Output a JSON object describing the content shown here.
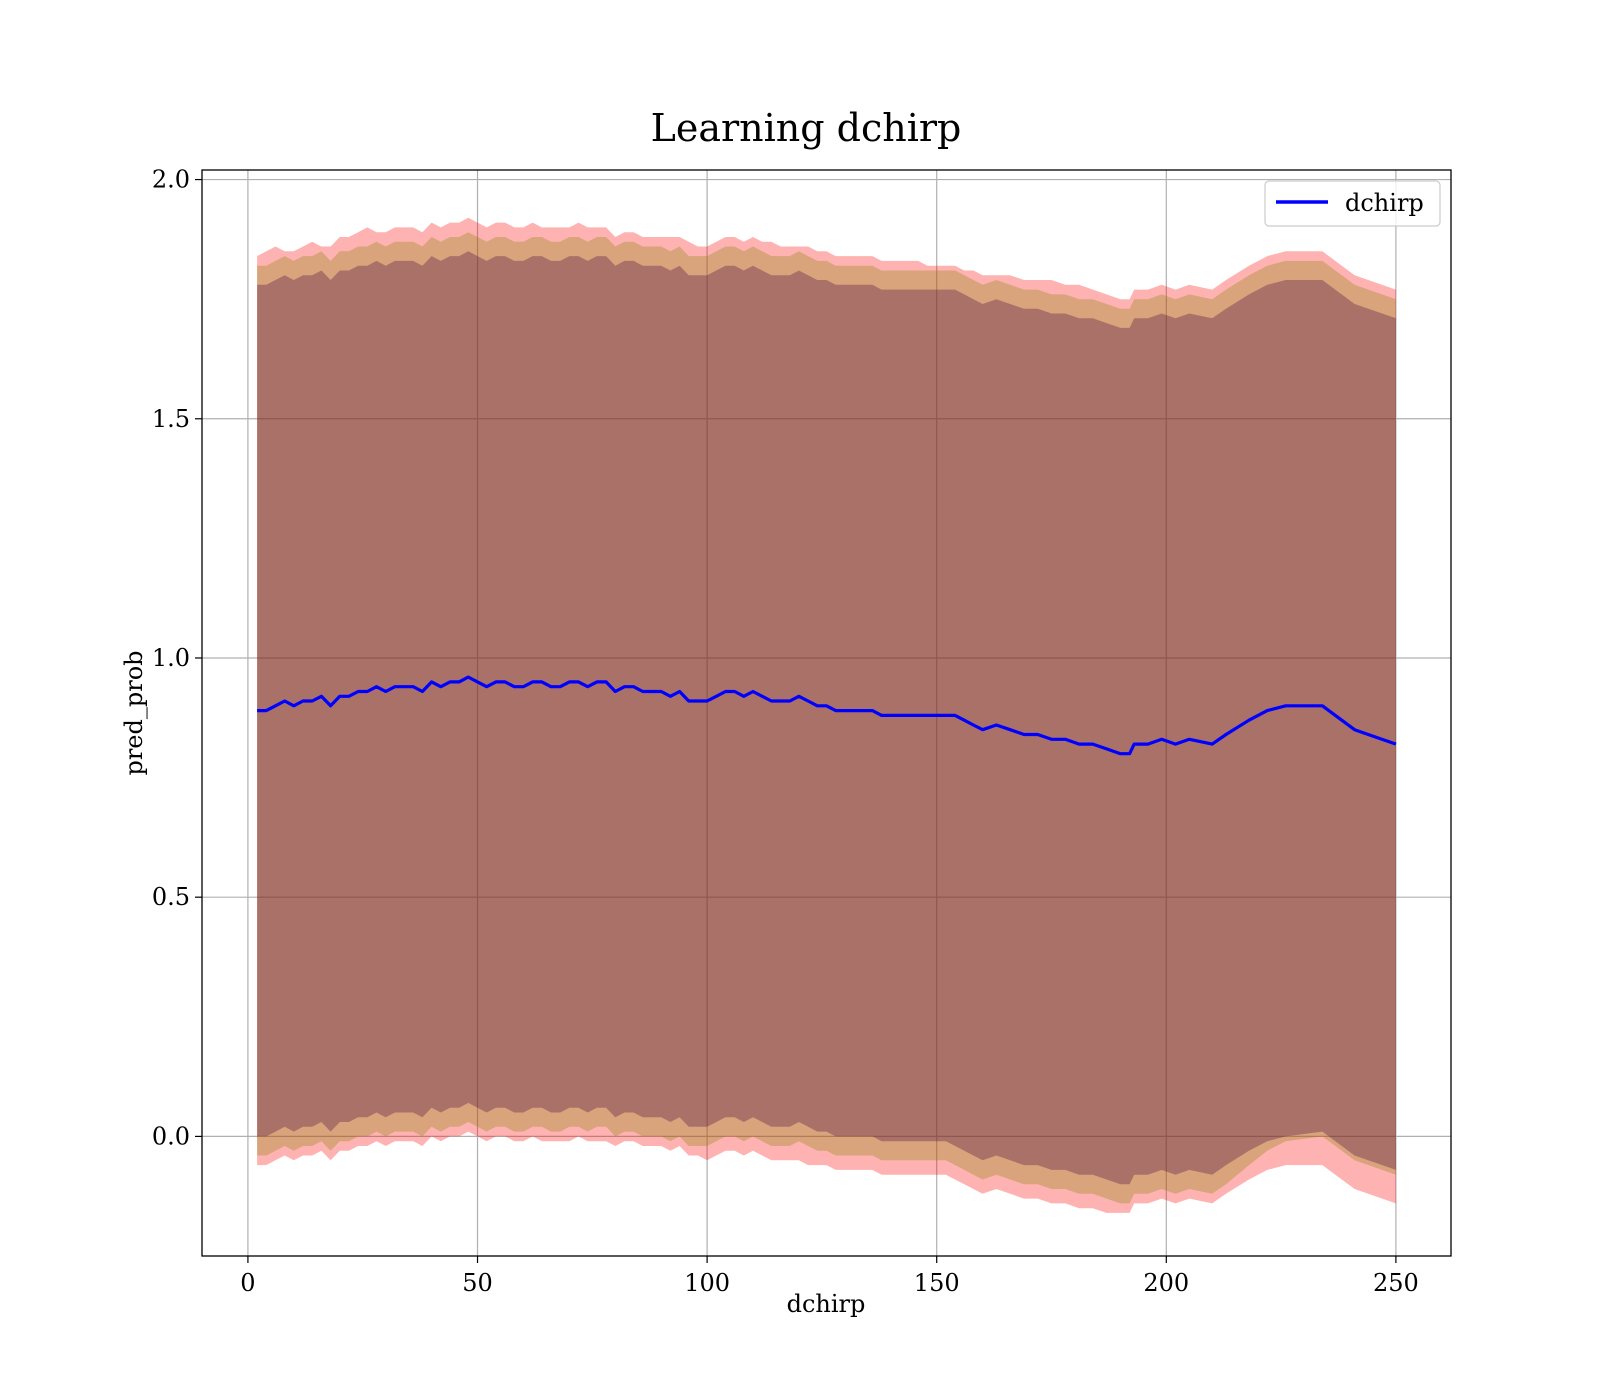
{
  "chart_data": {
    "type": "line",
    "title": "Learning dchirp",
    "xlabel": "dchirp",
    "ylabel": "pred_prob",
    "xlim": [
      -10,
      262
    ],
    "ylim": [
      -0.25,
      2.02
    ],
    "xticks": [
      0,
      50,
      100,
      150,
      200,
      250
    ],
    "yticks": [
      0.0,
      0.5,
      1.0,
      1.5,
      2.0
    ],
    "xtick_labels": [
      "0",
      "50",
      "100",
      "150",
      "200",
      "250"
    ],
    "ytick_labels": [
      "0.0",
      "0.5",
      "1.0",
      "1.5",
      "2.0"
    ],
    "grid": true,
    "legend": {
      "position": "top-right",
      "entries": [
        "dchirp"
      ]
    },
    "colors": {
      "line": "#0000ff",
      "band_outer": "#ff0000",
      "band_middle": "#808000",
      "band_inner": "#400040"
    },
    "series": [
      {
        "name": "dchirp",
        "x": [
          2,
          4,
          6,
          8,
          10,
          12,
          14,
          16,
          18,
          20,
          22,
          24,
          26,
          28,
          30,
          32,
          34,
          36,
          38,
          40,
          42,
          44,
          46,
          48,
          50,
          52,
          54,
          56,
          58,
          60,
          62,
          64,
          66,
          68,
          70,
          72,
          74,
          76,
          78,
          80,
          82,
          84,
          86,
          88,
          90,
          92,
          94,
          96,
          98,
          100,
          102,
          104,
          106,
          108,
          110,
          112,
          114,
          116,
          118,
          120,
          122,
          124,
          126,
          128,
          130,
          132,
          134,
          136,
          138,
          140,
          142,
          144,
          146,
          148,
          150,
          152,
          154,
          156,
          158,
          160,
          163,
          166,
          169,
          172,
          175,
          178,
          181,
          184,
          187,
          190,
          192,
          193,
          196,
          199,
          202,
          205,
          210,
          213,
          218,
          222,
          226,
          234,
          241,
          250
        ],
        "y": [
          0.89,
          0.89,
          0.9,
          0.91,
          0.9,
          0.91,
          0.91,
          0.92,
          0.9,
          0.92,
          0.92,
          0.93,
          0.93,
          0.94,
          0.93,
          0.94,
          0.94,
          0.94,
          0.93,
          0.95,
          0.94,
          0.95,
          0.95,
          0.96,
          0.95,
          0.94,
          0.95,
          0.95,
          0.94,
          0.94,
          0.95,
          0.95,
          0.94,
          0.94,
          0.95,
          0.95,
          0.94,
          0.95,
          0.95,
          0.93,
          0.94,
          0.94,
          0.93,
          0.93,
          0.93,
          0.92,
          0.93,
          0.91,
          0.91,
          0.91,
          0.92,
          0.93,
          0.93,
          0.92,
          0.93,
          0.92,
          0.91,
          0.91,
          0.91,
          0.92,
          0.91,
          0.9,
          0.9,
          0.89,
          0.89,
          0.89,
          0.89,
          0.89,
          0.88,
          0.88,
          0.88,
          0.88,
          0.88,
          0.88,
          0.88,
          0.88,
          0.88,
          0.87,
          0.86,
          0.85,
          0.86,
          0.85,
          0.84,
          0.84,
          0.83,
          0.83,
          0.82,
          0.82,
          0.81,
          0.8,
          0.8,
          0.82,
          0.82,
          0.83,
          0.82,
          0.83,
          0.82,
          0.84,
          0.87,
          0.89,
          0.9,
          0.9,
          0.85,
          0.82
        ]
      }
    ],
    "bands": [
      {
        "label": "outer",
        "upper": [
          1.84,
          1.85,
          1.86,
          1.85,
          1.85,
          1.86,
          1.87,
          1.86,
          1.86,
          1.88,
          1.88,
          1.89,
          1.9,
          1.89,
          1.89,
          1.9,
          1.9,
          1.9,
          1.89,
          1.91,
          1.9,
          1.91,
          1.91,
          1.92,
          1.91,
          1.9,
          1.91,
          1.91,
          1.9,
          1.9,
          1.91,
          1.9,
          1.9,
          1.9,
          1.9,
          1.91,
          1.9,
          1.9,
          1.9,
          1.88,
          1.89,
          1.89,
          1.88,
          1.88,
          1.88,
          1.88,
          1.88,
          1.87,
          1.86,
          1.86,
          1.87,
          1.88,
          1.88,
          1.87,
          1.88,
          1.87,
          1.87,
          1.86,
          1.86,
          1.86,
          1.86,
          1.85,
          1.85,
          1.84,
          1.84,
          1.84,
          1.84,
          1.84,
          1.83,
          1.83,
          1.83,
          1.83,
          1.83,
          1.82,
          1.82,
          1.82,
          1.82,
          1.81,
          1.81,
          1.8,
          1.8,
          1.8,
          1.79,
          1.79,
          1.79,
          1.78,
          1.78,
          1.77,
          1.76,
          1.75,
          1.75,
          1.77,
          1.77,
          1.78,
          1.77,
          1.78,
          1.77,
          1.79,
          1.82,
          1.84,
          1.85,
          1.85,
          1.8,
          1.77
        ],
        "lower": [
          -0.06,
          -0.06,
          -0.05,
          -0.04,
          -0.05,
          -0.04,
          -0.04,
          -0.03,
          -0.05,
          -0.03,
          -0.03,
          -0.02,
          -0.02,
          -0.01,
          -0.02,
          -0.01,
          -0.01,
          -0.01,
          -0.02,
          0.0,
          -0.01,
          0.0,
          0.0,
          0.01,
          0.0,
          -0.01,
          0.0,
          0.0,
          -0.01,
          -0.01,
          0.0,
          -0.01,
          -0.01,
          -0.01,
          -0.01,
          0.0,
          -0.01,
          -0.01,
          -0.01,
          -0.02,
          -0.01,
          -0.01,
          -0.02,
          -0.02,
          -0.02,
          -0.03,
          -0.02,
          -0.04,
          -0.04,
          -0.05,
          -0.04,
          -0.03,
          -0.03,
          -0.04,
          -0.03,
          -0.04,
          -0.05,
          -0.05,
          -0.05,
          -0.05,
          -0.06,
          -0.06,
          -0.06,
          -0.07,
          -0.07,
          -0.07,
          -0.07,
          -0.07,
          -0.08,
          -0.08,
          -0.08,
          -0.08,
          -0.08,
          -0.08,
          -0.08,
          -0.08,
          -0.09,
          -0.1,
          -0.11,
          -0.12,
          -0.11,
          -0.12,
          -0.13,
          -0.13,
          -0.14,
          -0.14,
          -0.15,
          -0.15,
          -0.16,
          -0.16,
          -0.16,
          -0.14,
          -0.14,
          -0.13,
          -0.14,
          -0.13,
          -0.14,
          -0.12,
          -0.09,
          -0.07,
          -0.06,
          -0.06,
          -0.11,
          -0.14
        ]
      },
      {
        "label": "middle",
        "upper": [
          1.82,
          1.82,
          1.83,
          1.84,
          1.83,
          1.84,
          1.84,
          1.85,
          1.83,
          1.85,
          1.85,
          1.86,
          1.86,
          1.87,
          1.86,
          1.87,
          1.87,
          1.87,
          1.86,
          1.88,
          1.87,
          1.88,
          1.88,
          1.89,
          1.88,
          1.87,
          1.88,
          1.88,
          1.87,
          1.87,
          1.88,
          1.88,
          1.87,
          1.87,
          1.88,
          1.88,
          1.87,
          1.88,
          1.88,
          1.86,
          1.87,
          1.87,
          1.86,
          1.86,
          1.86,
          1.85,
          1.86,
          1.84,
          1.84,
          1.84,
          1.85,
          1.86,
          1.86,
          1.85,
          1.86,
          1.85,
          1.84,
          1.84,
          1.84,
          1.85,
          1.84,
          1.83,
          1.83,
          1.82,
          1.82,
          1.82,
          1.82,
          1.82,
          1.81,
          1.81,
          1.81,
          1.81,
          1.81,
          1.81,
          1.81,
          1.81,
          1.81,
          1.8,
          1.79,
          1.78,
          1.79,
          1.78,
          1.77,
          1.77,
          1.76,
          1.76,
          1.75,
          1.75,
          1.74,
          1.73,
          1.73,
          1.75,
          1.75,
          1.76,
          1.75,
          1.76,
          1.75,
          1.77,
          1.8,
          1.82,
          1.83,
          1.83,
          1.78,
          1.75
        ],
        "lower": [
          -0.04,
          -0.04,
          -0.03,
          -0.02,
          -0.03,
          -0.02,
          -0.02,
          -0.01,
          -0.03,
          -0.01,
          -0.01,
          0.0,
          0.0,
          0.01,
          0.0,
          0.01,
          0.01,
          0.01,
          0.0,
          0.02,
          0.01,
          0.02,
          0.02,
          0.03,
          0.02,
          0.01,
          0.02,
          0.02,
          0.01,
          0.01,
          0.02,
          0.02,
          0.01,
          0.01,
          0.02,
          0.02,
          0.01,
          0.02,
          0.02,
          0.0,
          0.01,
          0.01,
          0.0,
          0.0,
          0.0,
          -0.01,
          0.0,
          -0.02,
          -0.02,
          -0.02,
          -0.01,
          0.0,
          0.0,
          -0.01,
          0.0,
          -0.01,
          -0.02,
          -0.02,
          -0.02,
          -0.01,
          -0.02,
          -0.03,
          -0.03,
          -0.04,
          -0.04,
          -0.04,
          -0.04,
          -0.04,
          -0.05,
          -0.05,
          -0.05,
          -0.05,
          -0.05,
          -0.05,
          -0.05,
          -0.05,
          -0.06,
          -0.07,
          -0.08,
          -0.09,
          -0.08,
          -0.09,
          -0.1,
          -0.1,
          -0.11,
          -0.11,
          -0.12,
          -0.12,
          -0.13,
          -0.14,
          -0.14,
          -0.12,
          -0.12,
          -0.11,
          -0.12,
          -0.11,
          -0.12,
          -0.1,
          -0.06,
          -0.03,
          -0.01,
          0.0,
          -0.05,
          -0.08
        ]
      },
      {
        "label": "inner",
        "upper": [
          1.78,
          1.78,
          1.79,
          1.8,
          1.79,
          1.8,
          1.8,
          1.81,
          1.79,
          1.81,
          1.81,
          1.82,
          1.82,
          1.83,
          1.82,
          1.83,
          1.83,
          1.83,
          1.82,
          1.84,
          1.83,
          1.84,
          1.84,
          1.85,
          1.84,
          1.83,
          1.84,
          1.84,
          1.83,
          1.83,
          1.84,
          1.84,
          1.83,
          1.83,
          1.84,
          1.84,
          1.83,
          1.84,
          1.84,
          1.82,
          1.83,
          1.83,
          1.82,
          1.82,
          1.82,
          1.81,
          1.82,
          1.8,
          1.8,
          1.8,
          1.81,
          1.82,
          1.82,
          1.81,
          1.82,
          1.81,
          1.8,
          1.8,
          1.8,
          1.81,
          1.8,
          1.79,
          1.79,
          1.78,
          1.78,
          1.78,
          1.78,
          1.78,
          1.77,
          1.77,
          1.77,
          1.77,
          1.77,
          1.77,
          1.77,
          1.77,
          1.77,
          1.76,
          1.75,
          1.74,
          1.75,
          1.74,
          1.73,
          1.73,
          1.72,
          1.72,
          1.71,
          1.71,
          1.7,
          1.69,
          1.69,
          1.71,
          1.71,
          1.72,
          1.71,
          1.72,
          1.71,
          1.73,
          1.76,
          1.78,
          1.79,
          1.79,
          1.74,
          1.71
        ],
        "lower": [
          0.0,
          0.0,
          0.01,
          0.02,
          0.01,
          0.02,
          0.02,
          0.03,
          0.01,
          0.03,
          0.03,
          0.04,
          0.04,
          0.05,
          0.04,
          0.05,
          0.05,
          0.05,
          0.04,
          0.06,
          0.05,
          0.06,
          0.06,
          0.07,
          0.06,
          0.05,
          0.06,
          0.06,
          0.05,
          0.05,
          0.06,
          0.06,
          0.05,
          0.05,
          0.06,
          0.06,
          0.05,
          0.06,
          0.06,
          0.04,
          0.05,
          0.05,
          0.04,
          0.04,
          0.04,
          0.03,
          0.04,
          0.02,
          0.02,
          0.02,
          0.03,
          0.04,
          0.04,
          0.03,
          0.04,
          0.03,
          0.02,
          0.02,
          0.02,
          0.03,
          0.02,
          0.01,
          0.01,
          0.0,
          0.0,
          0.0,
          0.0,
          0.0,
          -0.01,
          -0.01,
          -0.01,
          -0.01,
          -0.01,
          -0.01,
          -0.01,
          -0.01,
          -0.02,
          -0.03,
          -0.04,
          -0.05,
          -0.04,
          -0.05,
          -0.06,
          -0.06,
          -0.07,
          -0.07,
          -0.08,
          -0.08,
          -0.09,
          -0.1,
          -0.1,
          -0.08,
          -0.08,
          -0.07,
          -0.08,
          -0.07,
          -0.08,
          -0.06,
          -0.03,
          -0.01,
          0.0,
          0.01,
          -0.04,
          -0.07
        ]
      }
    ]
  }
}
